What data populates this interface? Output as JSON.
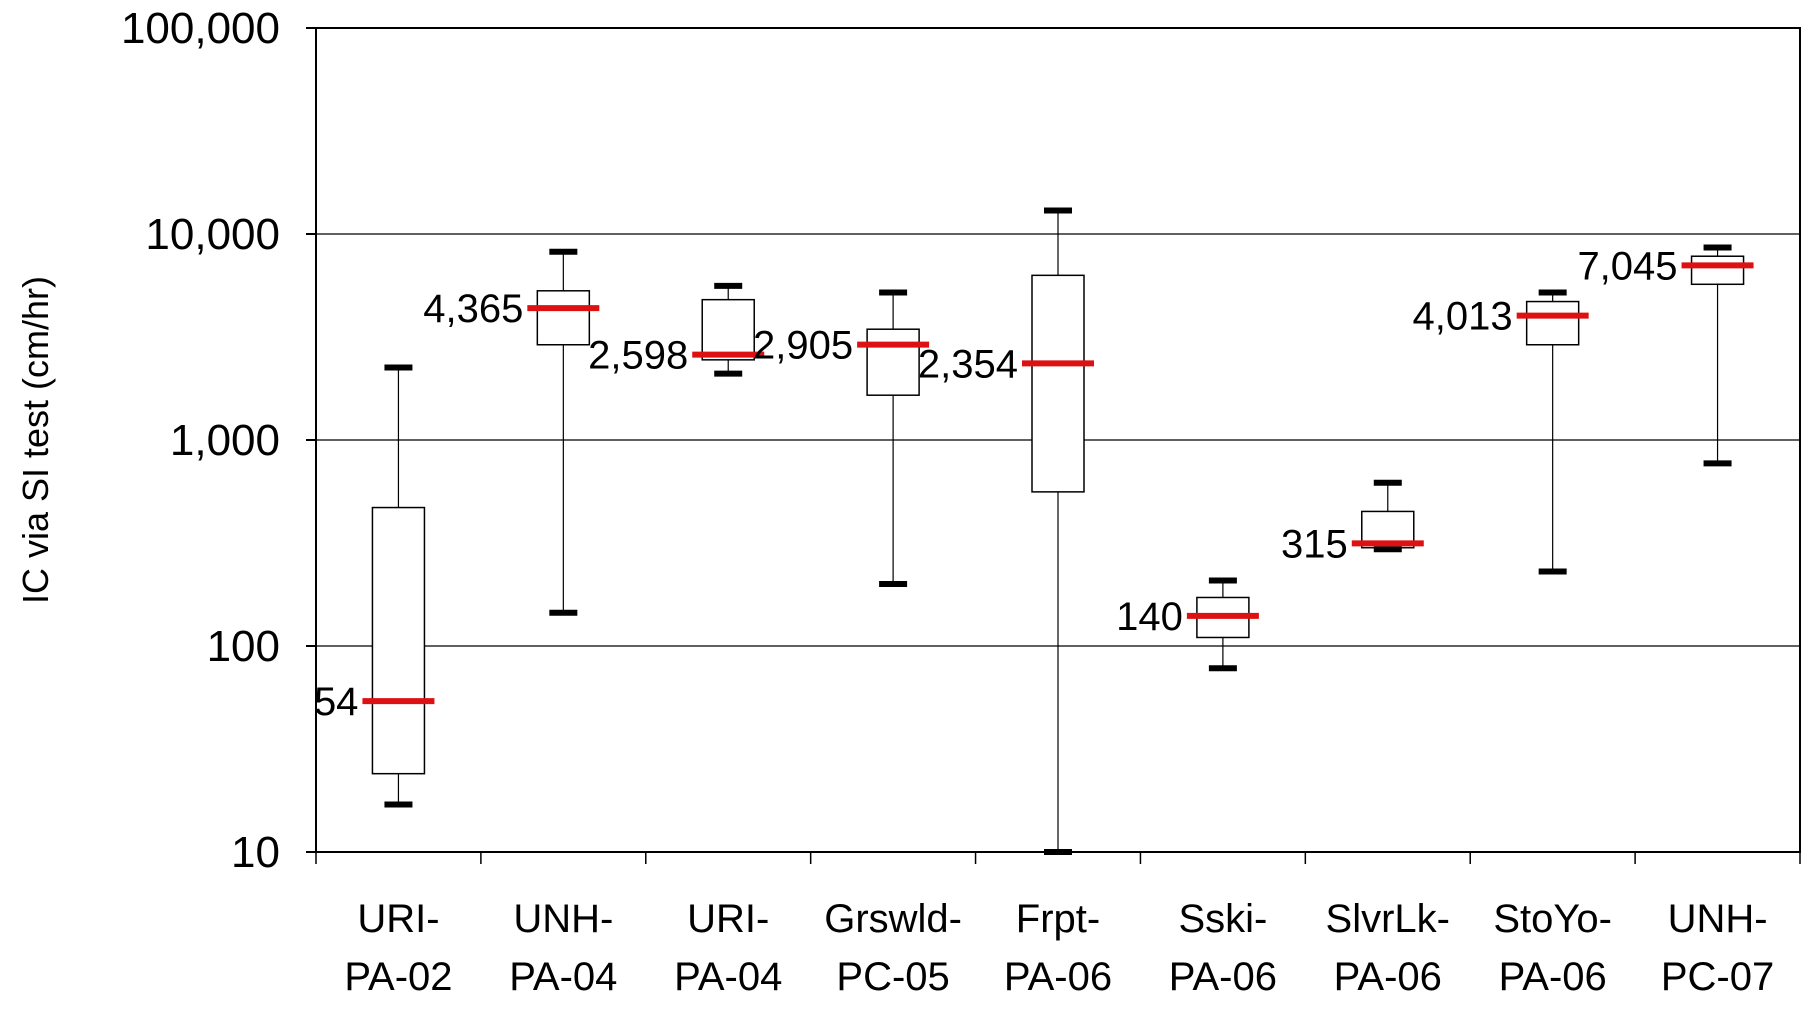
{
  "chart_data": {
    "type": "box",
    "title": "",
    "xlabel": "",
    "ylabel": "IC via SI test (cm/hr)",
    "yscale": "log",
    "ylim": [
      10,
      100000
    ],
    "y_ticks": [
      "10",
      "100",
      "1,000",
      "10,000",
      "100,000"
    ],
    "grid": "horizontal major gridlines",
    "legend": "none",
    "median_color": "#dd1111",
    "categories": [
      {
        "line1": "URI-",
        "line2": "PA-02",
        "min": 17,
        "q1": 24,
        "median": 54,
        "q3": 470,
        "max": 2250,
        "median_label": "54",
        "label_side": "left"
      },
      {
        "line1": "UNH-",
        "line2": "PA-04",
        "min": 145,
        "q1": 2900,
        "median": 4365,
        "q3": 5300,
        "max": 8200,
        "median_label": "4,365",
        "label_side": "left"
      },
      {
        "line1": "URI-",
        "line2": "PA-04",
        "min": 2100,
        "q1": 2450,
        "median": 2598,
        "q3": 4800,
        "max": 5600,
        "median_label": "2,598",
        "label_side": "left"
      },
      {
        "line1": "Grswld-",
        "line2": "PC-05",
        "min": 200,
        "q1": 1650,
        "median": 2905,
        "q3": 3450,
        "max": 5200,
        "median_label": "2,905",
        "label_side": "left"
      },
      {
        "line1": "Frpt-",
        "line2": "PA-06",
        "min": 10,
        "q1": 560,
        "median": 2354,
        "q3": 6300,
        "max": 13000,
        "median_label": "2,354",
        "label_side": "left"
      },
      {
        "line1": "Sski-",
        "line2": "PA-06",
        "min": 78,
        "q1": 110,
        "median": 140,
        "q3": 172,
        "max": 208,
        "median_label": "140",
        "label_side": "left"
      },
      {
        "line1": "SlvrLk-",
        "line2": "PA-06",
        "min": 295,
        "q1": 300,
        "median": 315,
        "q3": 450,
        "max": 620,
        "median_label": "315",
        "label_side": "left"
      },
      {
        "line1": "StoYo-",
        "line2": "PA-06",
        "min": 230,
        "q1": 2900,
        "median": 4013,
        "q3": 4700,
        "max": 5200,
        "median_label": "4,013",
        "label_side": "left"
      },
      {
        "line1": "UNH-",
        "line2": "PC-07",
        "min": 770,
        "q1": 5700,
        "median": 7045,
        "q3": 7800,
        "max": 8600,
        "median_label": "7,045",
        "label_side": "left"
      }
    ]
  }
}
